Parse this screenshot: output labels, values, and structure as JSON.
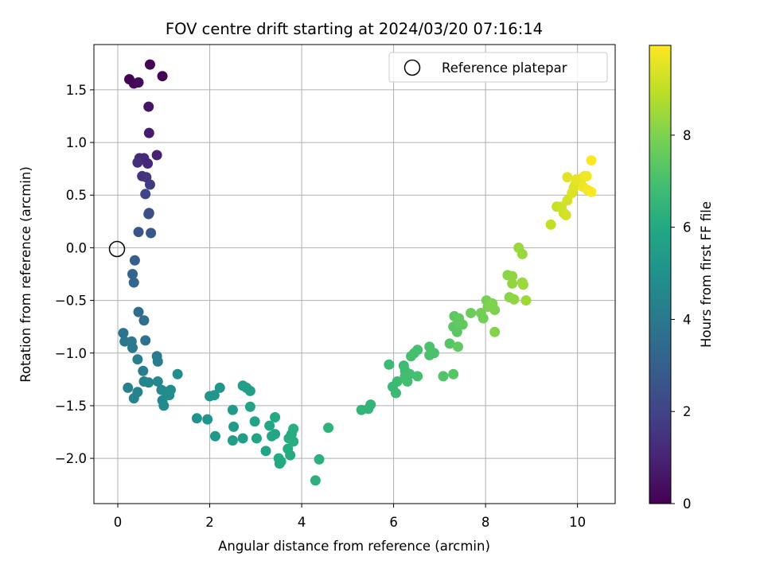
{
  "chart_data": {
    "type": "scatter",
    "title": "FOV centre drift starting at 2024/03/20 07:16:14",
    "xlabel": "Angular distance from reference (arcmin)",
    "ylabel": "Rotation from reference (arcmin)",
    "xlim": [
      -0.52,
      10.82
    ],
    "ylim": [
      -2.43,
      1.93
    ],
    "x_ticks": [
      0,
      2,
      4,
      6,
      8,
      10
    ],
    "x_tick_labels": [
      "0",
      "2",
      "4",
      "6",
      "8",
      "10"
    ],
    "y_ticks": [
      1.5,
      1.0,
      0.5,
      0.0,
      -0.5,
      -1.0,
      -1.5,
      -2.0
    ],
    "y_tick_labels": [
      "1.5",
      "1.0",
      "0.5",
      "0.0",
      "−0.5",
      "−1.0",
      "−1.5",
      "−2.0"
    ],
    "grid": true,
    "legend": {
      "placement": "top-right",
      "entries": [
        {
          "label": "Reference platepar",
          "marker": "open-circle"
        }
      ]
    },
    "reference_point": {
      "x": 0,
      "y": 0,
      "label": "Reference platepar"
    },
    "colorbar": {
      "label": "Hours from first FF file",
      "colormap": "viridis",
      "range": [
        0,
        9.95
      ],
      "ticks": [
        0,
        2,
        4,
        6,
        8
      ],
      "tick_labels": [
        "0",
        "2",
        "4",
        "6",
        "8"
      ]
    },
    "points": [
      [
        0.25,
        1.6,
        0.05
      ],
      [
        0.35,
        1.56,
        0.15
      ],
      [
        0.45,
        1.57,
        0.25
      ],
      [
        0.7,
        1.74,
        0.1
      ],
      [
        0.97,
        1.63,
        0.05
      ],
      [
        0.67,
        1.34,
        0.5
      ],
      [
        0.68,
        1.09,
        0.7
      ],
      [
        0.85,
        0.88,
        0.9
      ],
      [
        0.47,
        0.85,
        1.1
      ],
      [
        0.57,
        0.85,
        1.2
      ],
      [
        0.65,
        0.8,
        1.1
      ],
      [
        0.43,
        0.81,
        1.3
      ],
      [
        0.53,
        0.68,
        1.5
      ],
      [
        0.62,
        0.67,
        1.6
      ],
      [
        0.7,
        0.6,
        1.7
      ],
      [
        0.6,
        0.51,
        2.0
      ],
      [
        0.68,
        0.33,
        2.3
      ],
      [
        0.67,
        0.32,
        2.4
      ],
      [
        0.45,
        0.15,
        2.6
      ],
      [
        0.72,
        0.14,
        2.7
      ],
      [
        0.37,
        -0.12,
        3.0
      ],
      [
        0.32,
        -0.25,
        3.2
      ],
      [
        0.35,
        -0.33,
        3.3
      ],
      [
        0.45,
        -0.61,
        3.5
      ],
      [
        0.57,
        -0.69,
        3.6
      ],
      [
        0.6,
        -0.88,
        3.7
      ],
      [
        0.12,
        -0.81,
        3.8
      ],
      [
        0.15,
        -0.89,
        3.9
      ],
      [
        0.3,
        -0.89,
        4.0
      ],
      [
        0.32,
        -0.95,
        4.0
      ],
      [
        0.85,
        -1.03,
        4.0
      ],
      [
        0.87,
        -1.08,
        4.1
      ],
      [
        0.43,
        -1.06,
        4.2
      ],
      [
        0.55,
        -1.17,
        4.2
      ],
      [
        0.22,
        -1.33,
        4.3
      ],
      [
        0.35,
        -1.43,
        4.4
      ],
      [
        0.43,
        -1.37,
        4.4
      ],
      [
        0.57,
        -1.27,
        4.5
      ],
      [
        0.67,
        -1.28,
        4.5
      ],
      [
        0.87,
        -1.27,
        4.6
      ],
      [
        0.95,
        -1.35,
        4.6
      ],
      [
        1.05,
        -1.37,
        4.7
      ],
      [
        0.97,
        -1.45,
        4.7
      ],
      [
        1.0,
        -1.5,
        4.7
      ],
      [
        1.12,
        -1.4,
        4.8
      ],
      [
        1.15,
        -1.35,
        4.8
      ],
      [
        1.3,
        -1.2,
        4.9
      ],
      [
        1.72,
        -1.62,
        5.0
      ],
      [
        1.95,
        -1.63,
        5.1
      ],
      [
        2.0,
        -1.41,
        5.2
      ],
      [
        2.1,
        -1.4,
        5.2
      ],
      [
        2.22,
        -1.33,
        5.2
      ],
      [
        2.12,
        -1.79,
        5.3
      ],
      [
        2.5,
        -1.54,
        5.4
      ],
      [
        2.52,
        -1.7,
        5.4
      ],
      [
        2.5,
        -1.83,
        5.5
      ],
      [
        2.72,
        -1.81,
        5.5
      ],
      [
        2.72,
        -1.31,
        5.6
      ],
      [
        2.8,
        -1.33,
        5.6
      ],
      [
        2.88,
        -1.36,
        5.6
      ],
      [
        2.88,
        -1.51,
        5.7
      ],
      [
        2.98,
        -1.65,
        5.7
      ],
      [
        3.02,
        -1.81,
        5.8
      ],
      [
        3.22,
        -1.93,
        5.8
      ],
      [
        3.3,
        -1.69,
        5.9
      ],
      [
        3.35,
        -1.79,
        5.9
      ],
      [
        3.42,
        -1.77,
        5.9
      ],
      [
        3.42,
        -1.61,
        6.0
      ],
      [
        3.5,
        -2.0,
        6.0
      ],
      [
        3.52,
        -2.05,
        6.0
      ],
      [
        3.55,
        -2.03,
        6.0
      ],
      [
        3.7,
        -1.91,
        6.1
      ],
      [
        3.72,
        -1.81,
        6.1
      ],
      [
        3.78,
        -1.77,
        6.1
      ],
      [
        3.75,
        -1.97,
        6.1
      ],
      [
        3.82,
        -1.84,
        6.2
      ],
      [
        3.82,
        -1.72,
        6.2
      ],
      [
        4.3,
        -2.21,
        6.3
      ],
      [
        4.38,
        -2.01,
        6.3
      ],
      [
        4.58,
        -1.71,
        6.4
      ],
      [
        5.3,
        -1.54,
        6.5
      ],
      [
        5.45,
        -1.53,
        6.5
      ],
      [
        5.5,
        -1.49,
        6.5
      ],
      [
        5.9,
        -1.11,
        6.7
      ],
      [
        5.98,
        -1.32,
        6.7
      ],
      [
        6.05,
        -1.38,
        6.7
      ],
      [
        6.08,
        -1.27,
        6.8
      ],
      [
        6.22,
        -1.12,
        6.8
      ],
      [
        6.25,
        -1.17,
        6.8
      ],
      [
        6.25,
        -1.22,
        6.9
      ],
      [
        6.3,
        -1.27,
        6.9
      ],
      [
        6.35,
        -1.2,
        6.9
      ],
      [
        6.38,
        -1.03,
        7.0
      ],
      [
        6.45,
        -1.0,
        7.0
      ],
      [
        6.52,
        -0.97,
        7.0
      ],
      [
        6.52,
        -1.22,
        7.0
      ],
      [
        6.78,
        -0.94,
        7.1
      ],
      [
        6.78,
        -1.02,
        7.1
      ],
      [
        6.88,
        -1.0,
        7.1
      ],
      [
        7.08,
        -1.22,
        7.2
      ],
      [
        7.22,
        -0.91,
        7.3
      ],
      [
        7.3,
        -1.2,
        7.3
      ],
      [
        7.32,
        -0.65,
        7.4
      ],
      [
        7.3,
        -0.75,
        7.4
      ],
      [
        7.38,
        -0.8,
        7.4
      ],
      [
        7.4,
        -0.71,
        7.5
      ],
      [
        7.42,
        -0.67,
        7.5
      ],
      [
        7.5,
        -0.73,
        7.5
      ],
      [
        7.4,
        -0.94,
        7.5
      ],
      [
        7.68,
        -0.62,
        7.7
      ],
      [
        7.9,
        -0.62,
        7.8
      ],
      [
        7.95,
        -0.67,
        7.8
      ],
      [
        8.02,
        -0.5,
        7.9
      ],
      [
        8.05,
        -0.56,
        7.9
      ],
      [
        8.1,
        -0.55,
        8.0
      ],
      [
        8.15,
        -0.53,
        8.0
      ],
      [
        8.2,
        -0.59,
        8.0
      ],
      [
        8.2,
        -0.8,
        8.1
      ],
      [
        8.48,
        -0.26,
        8.2
      ],
      [
        8.52,
        -0.47,
        8.2
      ],
      [
        8.58,
        -0.27,
        8.3
      ],
      [
        8.58,
        -0.34,
        8.3
      ],
      [
        8.62,
        -0.49,
        8.3
      ],
      [
        8.72,
        0.0,
        8.4
      ],
      [
        8.8,
        -0.06,
        8.4
      ],
      [
        8.8,
        -0.33,
        8.4
      ],
      [
        8.82,
        -0.35,
        8.5
      ],
      [
        8.88,
        -0.5,
        8.5
      ],
      [
        9.42,
        0.22,
        9.0
      ],
      [
        9.55,
        0.39,
        9.1
      ],
      [
        9.65,
        0.39,
        9.2
      ],
      [
        9.7,
        0.33,
        9.2
      ],
      [
        9.75,
        0.31,
        9.3
      ],
      [
        9.78,
        0.45,
        9.3
      ],
      [
        9.88,
        0.52,
        9.4
      ],
      [
        9.92,
        0.57,
        9.4
      ],
      [
        9.95,
        0.6,
        9.5
      ],
      [
        9.78,
        0.67,
        9.5
      ],
      [
        9.98,
        0.65,
        9.6
      ],
      [
        10.1,
        0.66,
        9.6
      ],
      [
        10.12,
        0.58,
        9.7
      ],
      [
        10.15,
        0.68,
        9.7
      ],
      [
        10.2,
        0.68,
        9.8
      ],
      [
        10.22,
        0.55,
        9.8
      ],
      [
        10.3,
        0.53,
        9.9
      ],
      [
        10.3,
        0.83,
        9.95
      ]
    ]
  }
}
